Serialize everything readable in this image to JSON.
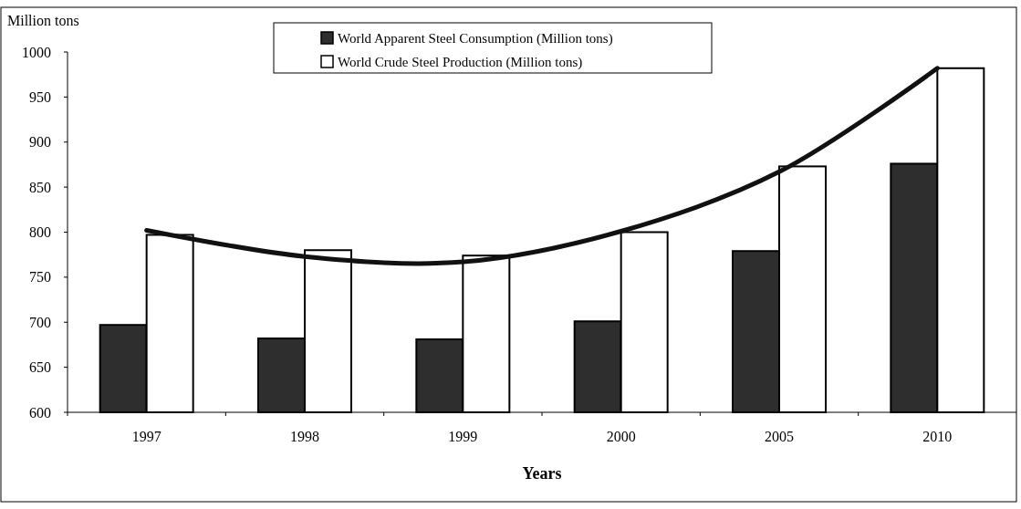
{
  "chart_data": {
    "type": "bar",
    "ylabel": "Million tons",
    "xlabel": "Years",
    "categories": [
      "1997",
      "1998",
      "1999",
      "2000",
      "2005",
      "2010"
    ],
    "series": [
      {
        "name": "World Apparent Steel Consumption (Million tons)",
        "color": "#2e2e2e",
        "values": [
          697,
          682,
          681,
          701,
          779,
          876
        ]
      },
      {
        "name": "World Crude Steel Production (Million tons)",
        "color": "#ffffff",
        "values": [
          797,
          780,
          774,
          800,
          873,
          982
        ]
      },
      {
        "type": "line",
        "color": "#111111",
        "values": [
          802,
          773,
          767,
          801,
          867,
          982
        ]
      }
    ],
    "ylim": [
      600,
      1000
    ],
    "yticks": [
      600,
      650,
      700,
      750,
      800,
      850,
      900,
      950,
      1000
    ],
    "grid": false,
    "legend": "top"
  }
}
